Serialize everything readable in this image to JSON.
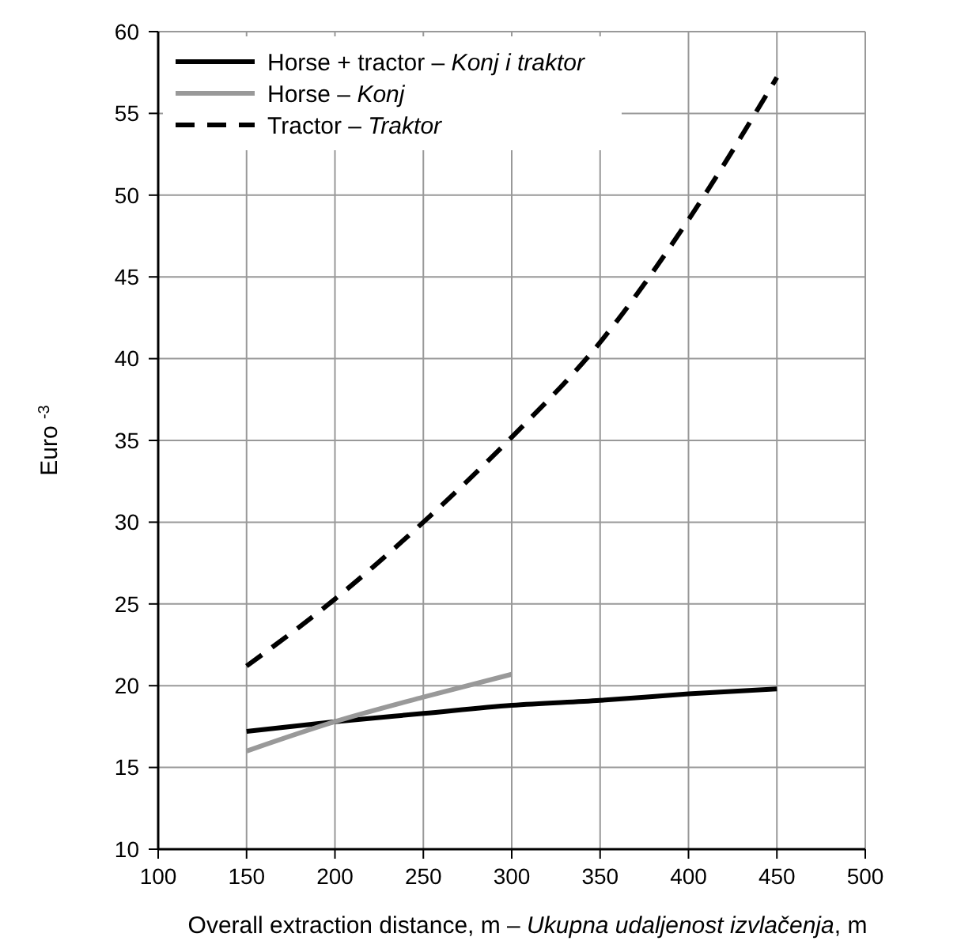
{
  "chart_data": {
    "type": "line",
    "xlabel": "Overall extraction distance, m – Ukupna udaljenost izvlačenja, m",
    "ylabel": "Euro $^{-3}$",
    "xlim": [
      100,
      500
    ],
    "xticks": [
      100,
      150,
      200,
      250,
      300,
      350,
      400,
      450,
      500
    ],
    "ylim": [
      10,
      60
    ],
    "yticks": [
      10,
      15,
      20,
      25,
      30,
      35,
      40,
      45,
      50,
      55,
      60
    ],
    "grid": true,
    "legend": "top left",
    "marker": "none",
    "series": [
      {
        "name": "Horse + tractor – Konj i traktor",
        "color": "#000000",
        "line_style": "solid",
        "x": [
          150,
          200,
          250,
          300,
          350,
          400,
          450
        ],
        "values": [
          17.2,
          17.8,
          18.3,
          18.8,
          19.1,
          19.5,
          19.8
        ]
      },
      {
        "name": "Horse – Konj",
        "color": "#999999",
        "line_style": "solid",
        "x": [
          150,
          200,
          250,
          300
        ],
        "values": [
          16.0,
          17.8,
          19.3,
          20.7
        ]
      },
      {
        "name": "Tractor – Traktor",
        "color": "#000000",
        "line_style": "dashed",
        "x": [
          150,
          200,
          250,
          300,
          350,
          400,
          450
        ],
        "values": [
          21.2,
          25.3,
          30.0,
          35.2,
          41.0,
          48.5,
          57.2
        ]
      }
    ]
  }
}
